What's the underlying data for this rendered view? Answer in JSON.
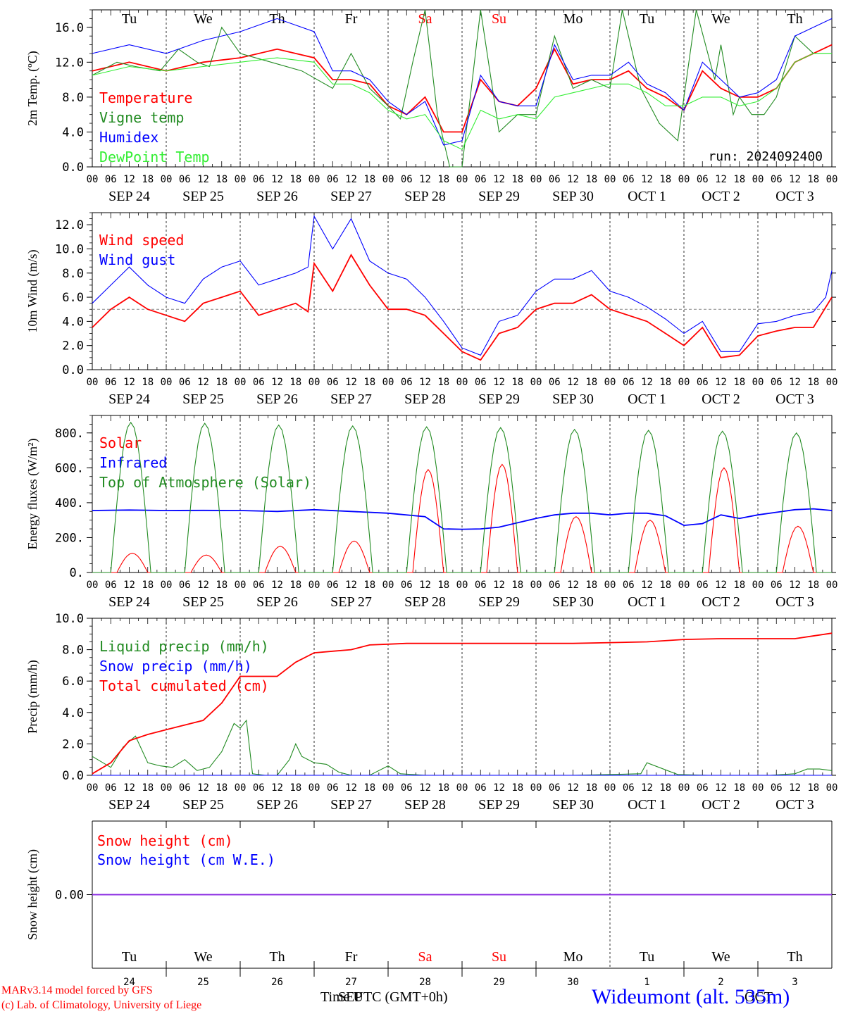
{
  "colors": {
    "red": "#ff0000",
    "green": "#228b22",
    "blue": "#0000ff",
    "lightgreen": "#33ee33",
    "purple": "#8a2be2"
  },
  "days": {
    "weekday": [
      "Tu",
      "We",
      "Th",
      "Fr",
      "Sa",
      "Su",
      "Mo",
      "Tu",
      "We",
      "Th"
    ],
    "weekend": [
      false,
      false,
      false,
      false,
      true,
      true,
      false,
      false,
      false,
      false
    ],
    "date_labels": [
      "SEP 24",
      "SEP 25",
      "SEP 26",
      "SEP 27",
      "SEP 28",
      "SEP 29",
      "SEP 30",
      "OCT  1",
      "OCT  2",
      "OCT  3"
    ],
    "day_numbers": [
      "24",
      "25",
      "26",
      "27",
      "28",
      "29",
      "30",
      "1",
      "2",
      "3"
    ],
    "hour_labels": [
      "00",
      "06",
      "12",
      "18"
    ],
    "final_hour": "00"
  },
  "chart_data": [
    {
      "type": "line",
      "ylabel": "2m Temp. (ºC)",
      "ylim": [
        0,
        18
      ],
      "yticks": [
        "0.0",
        "4.0",
        "8.0",
        "12.0",
        "16.0"
      ],
      "ytick_values": [
        0,
        4,
        8,
        12,
        16
      ],
      "annotation": "run: 2024092400",
      "x_unit": "hours since 2024-09-24 00 UTC",
      "series": [
        {
          "name": "Temperature",
          "color": "red",
          "x": [
            0,
            12,
            24,
            36,
            48,
            60,
            72,
            78,
            84,
            90,
            96,
            102,
            108,
            114,
            120,
            126,
            132,
            138,
            144,
            150,
            156,
            162,
            168,
            174,
            180,
            186,
            192,
            198,
            204,
            210,
            216,
            222,
            228,
            234,
            240
          ],
          "y": [
            11,
            12,
            11,
            12,
            12.5,
            13.5,
            12.5,
            10,
            10,
            9.5,
            7,
            6,
            8,
            4,
            4,
            10,
            7.5,
            7,
            9,
            13.5,
            9.5,
            10,
            10,
            11,
            9,
            8,
            6.5,
            11,
            9,
            8,
            8,
            9,
            12,
            13,
            14
          ]
        },
        {
          "name": "Vigne temp",
          "color": "green",
          "x": [
            0,
            8,
            14,
            22,
            28,
            34,
            38,
            42,
            48,
            58,
            68,
            78,
            84,
            90,
            96,
            100,
            104,
            108,
            112,
            116,
            120,
            126,
            132,
            138,
            144,
            150,
            156,
            162,
            168,
            172,
            178,
            184,
            190,
            196,
            202,
            204,
            208,
            210,
            214,
            218,
            222,
            228,
            234,
            240
          ],
          "y": [
            10.5,
            12,
            11.5,
            11,
            13.5,
            12,
            11.5,
            16,
            13,
            12,
            11,
            9,
            13,
            9,
            7,
            5.5,
            12,
            18,
            6,
            0,
            0,
            18,
            4,
            6,
            6,
            15,
            9,
            10,
            9,
            18,
            9,
            5,
            3,
            18,
            10,
            14,
            6,
            8,
            6,
            6,
            8,
            15,
            13,
            13
          ]
        },
        {
          "name": "Humidex",
          "color": "blue",
          "x": [
            0,
            12,
            24,
            36,
            48,
            60,
            72,
            78,
            84,
            90,
            96,
            102,
            108,
            114,
            120,
            126,
            132,
            138,
            144,
            150,
            156,
            162,
            168,
            174,
            180,
            186,
            192,
            198,
            204,
            210,
            216,
            222,
            228,
            234,
            240
          ],
          "y": [
            13,
            14,
            13,
            14.5,
            15.5,
            17,
            15.5,
            11,
            11,
            10,
            7.5,
            6,
            7.5,
            2.5,
            3,
            10.5,
            7.5,
            7,
            7,
            14,
            10,
            10.5,
            10.5,
            12,
            9.5,
            8.5,
            6.5,
            12,
            10,
            8,
            8.5,
            10,
            15,
            16,
            17
          ]
        },
        {
          "name": "DewPoint Temp",
          "color": "lightgreen",
          "x": [
            0,
            12,
            24,
            36,
            48,
            60,
            72,
            78,
            84,
            90,
            96,
            102,
            108,
            114,
            120,
            126,
            132,
            138,
            144,
            150,
            156,
            162,
            168,
            174,
            180,
            186,
            192,
            198,
            204,
            210,
            216,
            222,
            228,
            234,
            240
          ],
          "y": [
            10.5,
            11.5,
            11,
            11.5,
            12,
            12.5,
            12,
            9.5,
            9.5,
            8.5,
            6.5,
            5.5,
            6,
            3,
            2,
            6.5,
            5.5,
            6,
            5.5,
            8,
            8.5,
            9,
            9.5,
            9.5,
            8.5,
            7,
            7,
            8,
            8,
            7,
            7.5,
            9,
            12,
            13,
            13
          ]
        }
      ]
    },
    {
      "type": "line",
      "ylabel": "10m Wind (m/s)",
      "ylim": [
        0,
        13
      ],
      "yticks": [
        "0.0",
        "2.0",
        "4.0",
        "6.0",
        "8.0",
        "10.0",
        "12.0"
      ],
      "ytick_values": [
        0,
        2,
        4,
        6,
        8,
        10,
        12
      ],
      "reference_line": 5,
      "x_unit": "hours since 2024-09-24 00 UTC",
      "series": [
        {
          "name": "Wind speed",
          "color": "red",
          "x": [
            0,
            6,
            12,
            18,
            24,
            30,
            36,
            42,
            48,
            54,
            60,
            66,
            70,
            72,
            78,
            84,
            90,
            96,
            102,
            108,
            114,
            120,
            126,
            132,
            138,
            144,
            150,
            156,
            162,
            168,
            174,
            180,
            186,
            192,
            198,
            204,
            210,
            216,
            222,
            228,
            234,
            240
          ],
          "y": [
            3.5,
            5,
            6,
            5,
            4.5,
            4,
            5.5,
            6,
            6.5,
            4.5,
            5,
            5.5,
            4.8,
            8.8,
            6.5,
            9.5,
            7,
            5,
            5,
            4.5,
            3,
            1.5,
            0.8,
            3,
            3.5,
            5,
            5.5,
            5.5,
            6.2,
            5,
            4.5,
            4,
            3,
            2,
            3.5,
            1,
            1.2,
            2.8,
            3.2,
            3.5,
            3.5,
            6
          ]
        },
        {
          "name": "Wind gust",
          "color": "blue",
          "x": [
            0,
            6,
            12,
            18,
            24,
            30,
            36,
            42,
            48,
            54,
            60,
            66,
            70,
            72,
            78,
            84,
            90,
            96,
            102,
            108,
            114,
            120,
            126,
            132,
            138,
            144,
            150,
            156,
            162,
            168,
            174,
            180,
            186,
            192,
            198,
            204,
            210,
            216,
            222,
            228,
            234,
            238,
            240
          ],
          "y": [
            5.5,
            7,
            8.5,
            7,
            6,
            5.5,
            7.5,
            8.5,
            9,
            7,
            7.5,
            8,
            8.5,
            12.7,
            10,
            12.5,
            9,
            8,
            7.5,
            6,
            4,
            1.8,
            1.2,
            4,
            4.5,
            6.5,
            7.5,
            7.5,
            8.2,
            6.5,
            6,
            5.2,
            4.2,
            3,
            4,
            1.5,
            1.5,
            3.8,
            4,
            4.5,
            4.8,
            6,
            8.2
          ]
        }
      ]
    },
    {
      "type": "line",
      "ylabel": "Energy fluxes (W/m²)",
      "ylim": [
        0,
        900
      ],
      "yticks": [
        "0.",
        "200.",
        "400.",
        "600.",
        "800."
      ],
      "ytick_values": [
        0,
        200,
        400,
        600,
        800
      ],
      "x_unit": "hours since 2024-09-24 00 UTC",
      "series": [
        {
          "name": "Solar",
          "color": "red",
          "peaks": [
            110,
            100,
            150,
            180,
            590,
            620,
            320,
            300,
            600,
            265
          ],
          "peak_hour": 13,
          "half_width": 5
        },
        {
          "name": "Infrared",
          "color": "blue",
          "x": [
            0,
            12,
            24,
            36,
            48,
            60,
            72,
            84,
            96,
            108,
            114,
            120,
            126,
            132,
            138,
            144,
            150,
            156,
            162,
            168,
            174,
            180,
            186,
            192,
            198,
            204,
            210,
            216,
            222,
            228,
            234,
            240
          ],
          "y": [
            355,
            358,
            355,
            356,
            355,
            350,
            360,
            350,
            340,
            320,
            250,
            248,
            250,
            260,
            285,
            310,
            330,
            340,
            340,
            330,
            340,
            340,
            325,
            270,
            280,
            330,
            310,
            330,
            345,
            360,
            365,
            355
          ]
        },
        {
          "name": "Top of Atmosphere (Solar)",
          "color": "green",
          "peaks": [
            860,
            855,
            845,
            840,
            835,
            830,
            820,
            815,
            810,
            800
          ],
          "peak_hour": 12.5,
          "half_width": 6.5
        }
      ]
    },
    {
      "type": "line",
      "ylabel": "Precip (mm/h)",
      "ylim": [
        0,
        10
      ],
      "yticks": [
        "0.0",
        "2.0",
        "4.0",
        "6.0",
        "8.0",
        "10.0"
      ],
      "ytick_values": [
        0,
        2,
        4,
        6,
        8,
        10
      ],
      "x_unit": "hours since 2024-09-24 00 UTC",
      "series": [
        {
          "name": "Liquid precip (mm/h)",
          "color": "green",
          "x": [
            0,
            6,
            10,
            14,
            18,
            22,
            26,
            30,
            34,
            38,
            42,
            46,
            48,
            50,
            52,
            56,
            60,
            64,
            66,
            68,
            72,
            76,
            80,
            84,
            90,
            96,
            100,
            108,
            120,
            132,
            144,
            156,
            168,
            178,
            180,
            190,
            200,
            210,
            220,
            228,
            232,
            236,
            240
          ],
          "y": [
            1.2,
            0.5,
            1.8,
            2.5,
            0.8,
            0.6,
            0.5,
            1,
            0.3,
            0.5,
            1.5,
            3.3,
            3,
            3.5,
            0.1,
            0,
            0,
            1,
            2,
            1.2,
            0.8,
            0.7,
            0.2,
            0,
            0,
            0.6,
            0.1,
            0,
            0,
            0,
            0,
            0,
            0.05,
            0.1,
            0.8,
            0.05,
            0,
            0,
            0,
            0.1,
            0.4,
            0.4,
            0.3
          ]
        },
        {
          "name": "Snow precip (mm/h)",
          "color": "blue",
          "x": [
            0,
            240
          ],
          "y": [
            0,
            0
          ]
        },
        {
          "name": "Total cumulated (cm)",
          "color": "red",
          "x": [
            0,
            6,
            12,
            18,
            24,
            30,
            36,
            42,
            48,
            54,
            60,
            66,
            72,
            78,
            84,
            90,
            96,
            102,
            108,
            120,
            132,
            144,
            156,
            168,
            180,
            192,
            204,
            216,
            228,
            240
          ],
          "y": [
            0.1,
            0.8,
            2.2,
            2.6,
            2.9,
            3.2,
            3.5,
            4.6,
            6.3,
            6.3,
            6.3,
            7.2,
            7.8,
            7.9,
            8,
            8.3,
            8.35,
            8.4,
            8.4,
            8.4,
            8.4,
            8.4,
            8.4,
            8.45,
            8.5,
            8.65,
            8.7,
            8.7,
            8.7,
            9.05
          ]
        }
      ]
    },
    {
      "type": "line",
      "ylabel": "Snow height (cm)",
      "yticks": [
        "0.00"
      ],
      "ytick_values": [
        0
      ],
      "ylim": [
        -1,
        1
      ],
      "x_unit": "hours since 2024-09-24 00 UTC",
      "series": [
        {
          "name": "Snow height (cm)",
          "color": "red",
          "x": [
            0,
            240
          ],
          "y": [
            0,
            0
          ]
        },
        {
          "name": "Snow height (cm W.E.)",
          "color": "blue",
          "x": [
            0,
            240
          ],
          "y": [
            0,
            0
          ]
        }
      ]
    }
  ],
  "footer": {
    "model_line1": "MARv3.14 model forced by GFS",
    "model_line2": "(c) Lab. of Climatology, University of Liege",
    "time_label": "Time UTC (GMT+0h)",
    "overlap_label": "SEP",
    "oct_label": "OCT",
    "station": "Wideumont (alt. 535m)"
  }
}
